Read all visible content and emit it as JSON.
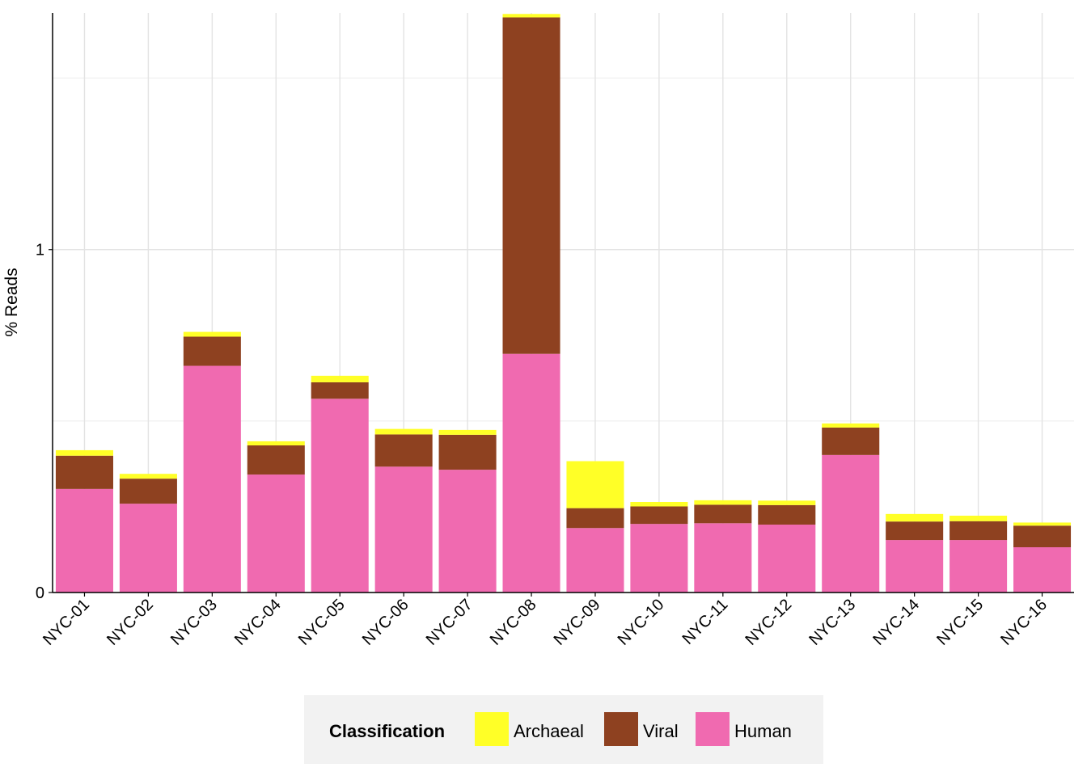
{
  "chart_data": {
    "type": "bar",
    "stacked": true,
    "ylabel": "% Reads",
    "xlabel": "",
    "ylim": [
      0,
      1.69
    ],
    "y_ticks": [
      {
        "value": 0,
        "label": "0"
      },
      {
        "value": 1,
        "label": "1"
      }
    ],
    "y_minor_gridlines": [
      0.5,
      1.5
    ],
    "grid": true,
    "categories": [
      "NYC-01",
      "NYC-02",
      "NYC-03",
      "NYC-04",
      "NYC-05",
      "NYC-06",
      "NYC-07",
      "NYC-08",
      "NYC-09",
      "NYC-10",
      "NYC-11",
      "NYC-12",
      "NYC-13",
      "NYC-14",
      "NYC-15",
      "NYC-16"
    ],
    "series": [
      {
        "name": "Human",
        "color": "#F06AB0",
        "values": [
          0.302,
          0.259,
          0.661,
          0.344,
          0.565,
          0.367,
          0.358,
          0.696,
          0.188,
          0.2,
          0.202,
          0.198,
          0.401,
          0.153,
          0.153,
          0.132
        ]
      },
      {
        "name": "Viral",
        "color": "#8E4120",
        "values": [
          0.097,
          0.073,
          0.085,
          0.085,
          0.048,
          0.094,
          0.102,
          0.981,
          0.058,
          0.051,
          0.054,
          0.057,
          0.08,
          0.054,
          0.055,
          0.063
        ]
      },
      {
        "name": "Archaeal",
        "color": "#FFFF27",
        "values": [
          0.016,
          0.014,
          0.014,
          0.012,
          0.019,
          0.016,
          0.014,
          0.01,
          0.137,
          0.013,
          0.013,
          0.013,
          0.012,
          0.022,
          0.016,
          0.009
        ]
      }
    ],
    "legend": {
      "title": "Classification",
      "position": "bottom",
      "order": [
        "Archaeal",
        "Viral",
        "Human"
      ]
    }
  }
}
